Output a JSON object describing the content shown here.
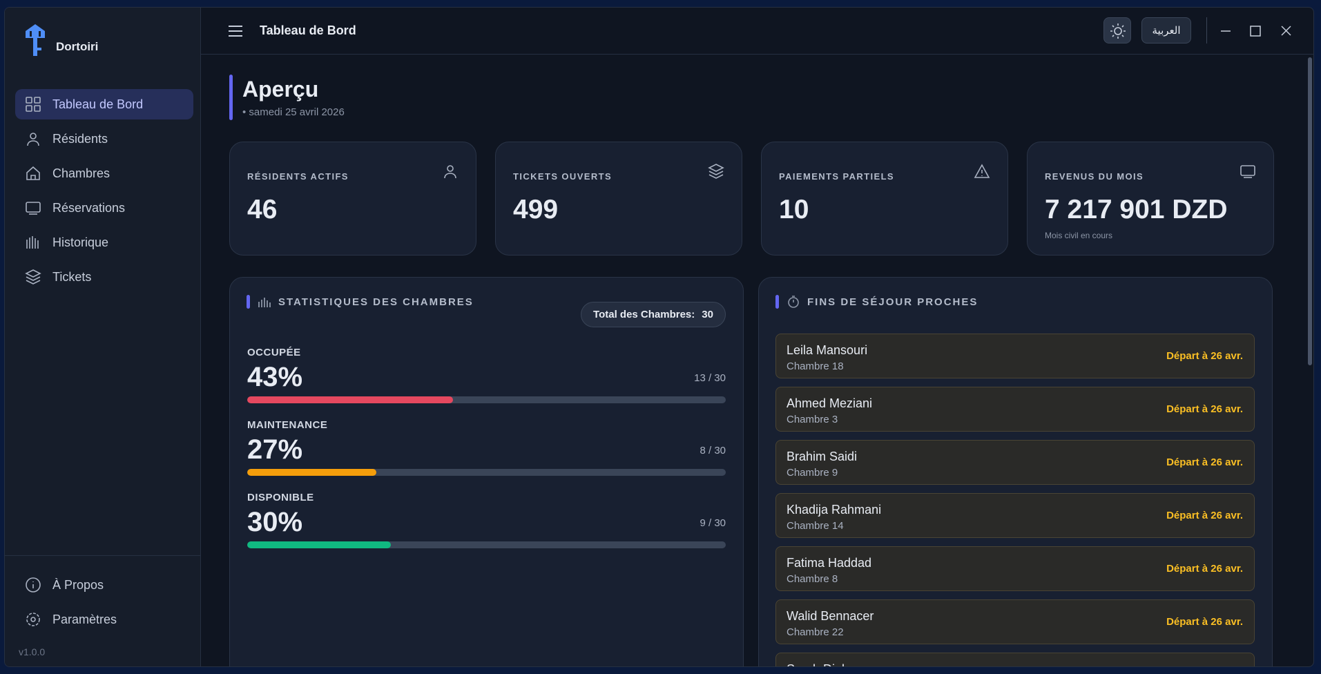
{
  "app": {
    "name": "Dortoiri",
    "version": "v1.0.0"
  },
  "nav": {
    "items": [
      "Tableau de Bord",
      "Résidents",
      "Chambres",
      "Réservations",
      "Historique",
      "Tickets"
    ],
    "bottom": [
      "À Propos",
      "Paramètres"
    ]
  },
  "header": {
    "title": "Tableau de Bord",
    "language": "العربية"
  },
  "page": {
    "title": "Aperçu",
    "date": "samedi 25 avril 2026"
  },
  "stats": [
    {
      "label": "RÉSIDENTS ACTIFS",
      "value": "46"
    },
    {
      "label": "TICKETS OUVERTS",
      "value": "499"
    },
    {
      "label": "PAIEMENTS PARTIELS",
      "value": "10"
    },
    {
      "label": "REVENUS DU MOIS",
      "value": "7 217 901 DZD",
      "note": "Mois civil en cours"
    }
  ],
  "rooms": {
    "title": "STATISTIQUES DES CHAMBRES",
    "total_label": "Total des Chambres:",
    "total": "30",
    "rows": [
      {
        "label": "OCCUPÉE",
        "percent": "43%",
        "count": "13 / 30",
        "color": "#e5485f"
      },
      {
        "label": "MAINTENANCE",
        "percent": "27%",
        "count": "8 / 30",
        "color": "#f59e0b"
      },
      {
        "label": "DISPONIBLE",
        "percent": "30%",
        "count": "9 / 30",
        "color": "#10b981"
      }
    ]
  },
  "endings": {
    "title": "FINS DE SÉJOUR PROCHES",
    "items": [
      {
        "name": "Leila Mansouri",
        "room": "Chambre 18",
        "departure": "Départ à 26 avr."
      },
      {
        "name": "Ahmed Meziani",
        "room": "Chambre 3",
        "departure": "Départ à 26 avr."
      },
      {
        "name": "Brahim Saidi",
        "room": "Chambre 9",
        "departure": "Départ à 26 avr."
      },
      {
        "name": "Khadija Rahmani",
        "room": "Chambre 14",
        "departure": "Départ à 26 avr."
      },
      {
        "name": "Fatima Haddad",
        "room": "Chambre 8",
        "departure": "Départ à 26 avr."
      },
      {
        "name": "Walid Bennacer",
        "room": "Chambre 22",
        "departure": "Départ à 26 avr."
      },
      {
        "name": "Sarah Djabou"
      }
    ]
  }
}
